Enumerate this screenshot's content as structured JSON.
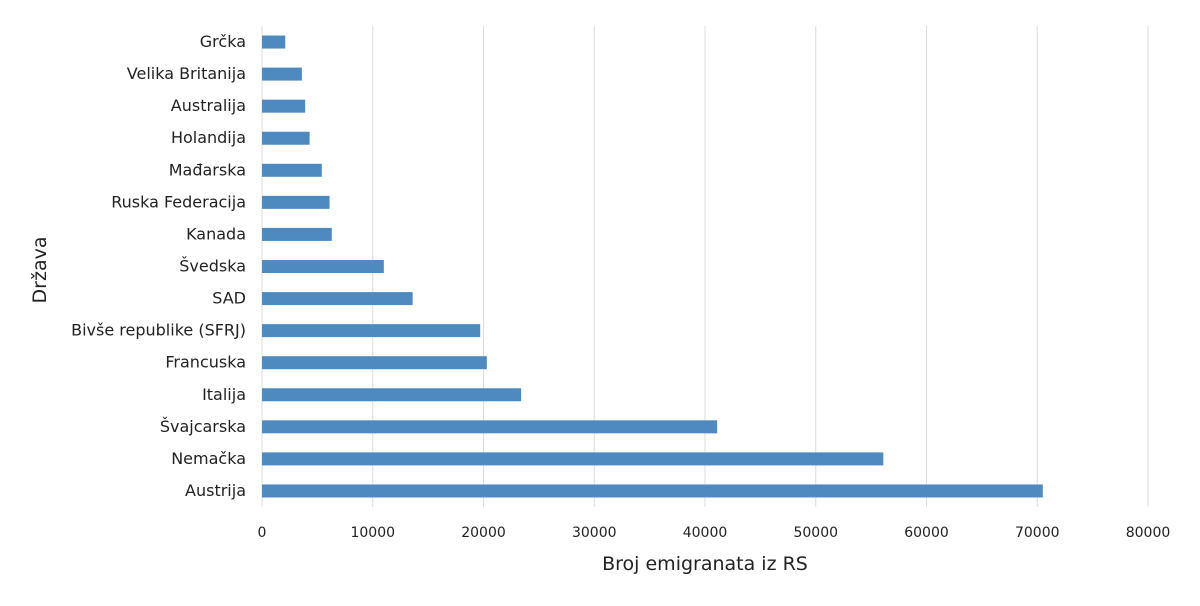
{
  "chart_data": {
    "type": "bar",
    "orientation": "horizontal",
    "xlabel": "Broj emigranata iz RS",
    "ylabel": "Država",
    "xlim": [
      0,
      80000
    ],
    "xticks": [
      0,
      10000,
      20000,
      30000,
      40000,
      50000,
      60000,
      70000,
      80000
    ],
    "grid": "vertical",
    "bar_color": "#4e8ac0",
    "categories": [
      "Grčka",
      "Velika Britanija",
      "Australija",
      "Holandija",
      "Mađarska",
      "Ruska Federacija",
      "Kanada",
      "Švedska",
      "SAD",
      "Bivše republike (SFRJ)",
      "Francuska",
      "Italija",
      "Švajcarska",
      "Nemačka",
      "Austrija"
    ],
    "values": [
      2100,
      3600,
      3900,
      4300,
      5400,
      6100,
      6300,
      11000,
      13600,
      19700,
      20300,
      23400,
      41100,
      56100,
      70500
    ]
  }
}
